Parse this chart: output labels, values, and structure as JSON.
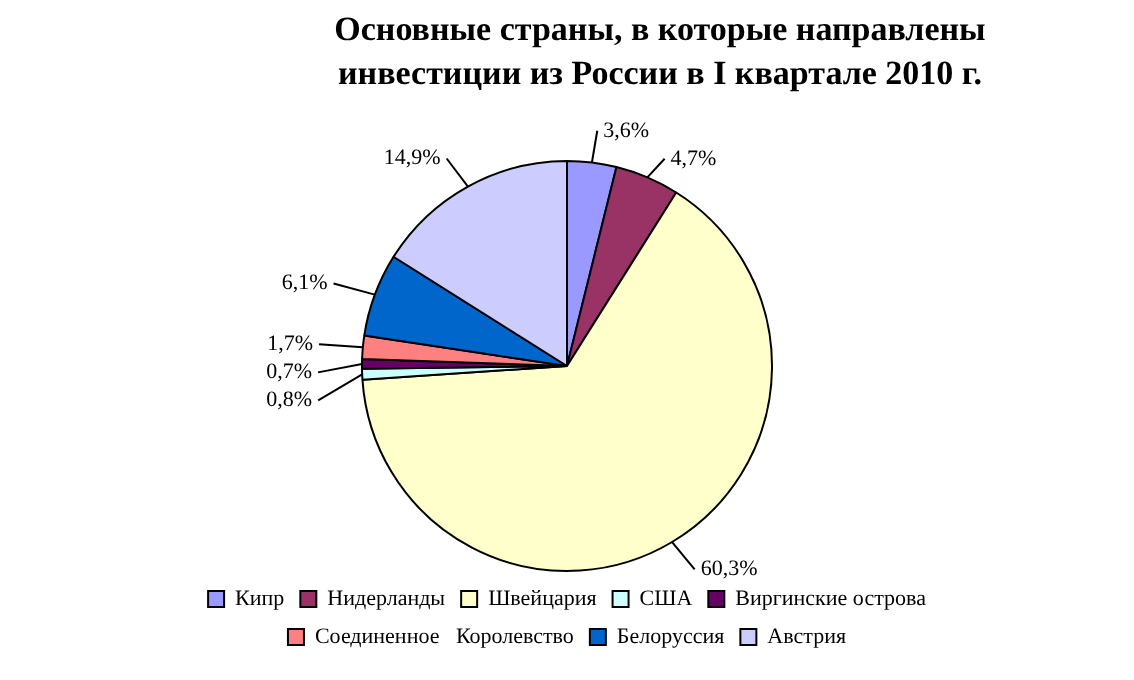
{
  "chart_data": {
    "type": "pie",
    "title": "Основные страны, в которые направлены инвестиции из России в I квартале 2010 г.",
    "categories": [
      "Кипр",
      "Нидерланды",
      "Швейцария",
      "США",
      "Виргинские острова",
      "Соединенное   Королевство",
      "Белоруссия",
      "Австрия"
    ],
    "values": [
      3.6,
      4.7,
      60.3,
      0.8,
      0.7,
      1.7,
      6.1,
      14.9
    ],
    "value_labels": [
      "3,6%",
      "4,7%",
      "60,3%",
      "0,8%",
      "0,7%",
      "1,7%",
      "6,1%",
      "14,9%"
    ],
    "colors": [
      "#9999ff",
      "#993366",
      "#ffffcc",
      "#ccffff",
      "#660066",
      "#ff8080",
      "#0066cc",
      "#ccccff"
    ],
    "legend": "bottom"
  }
}
